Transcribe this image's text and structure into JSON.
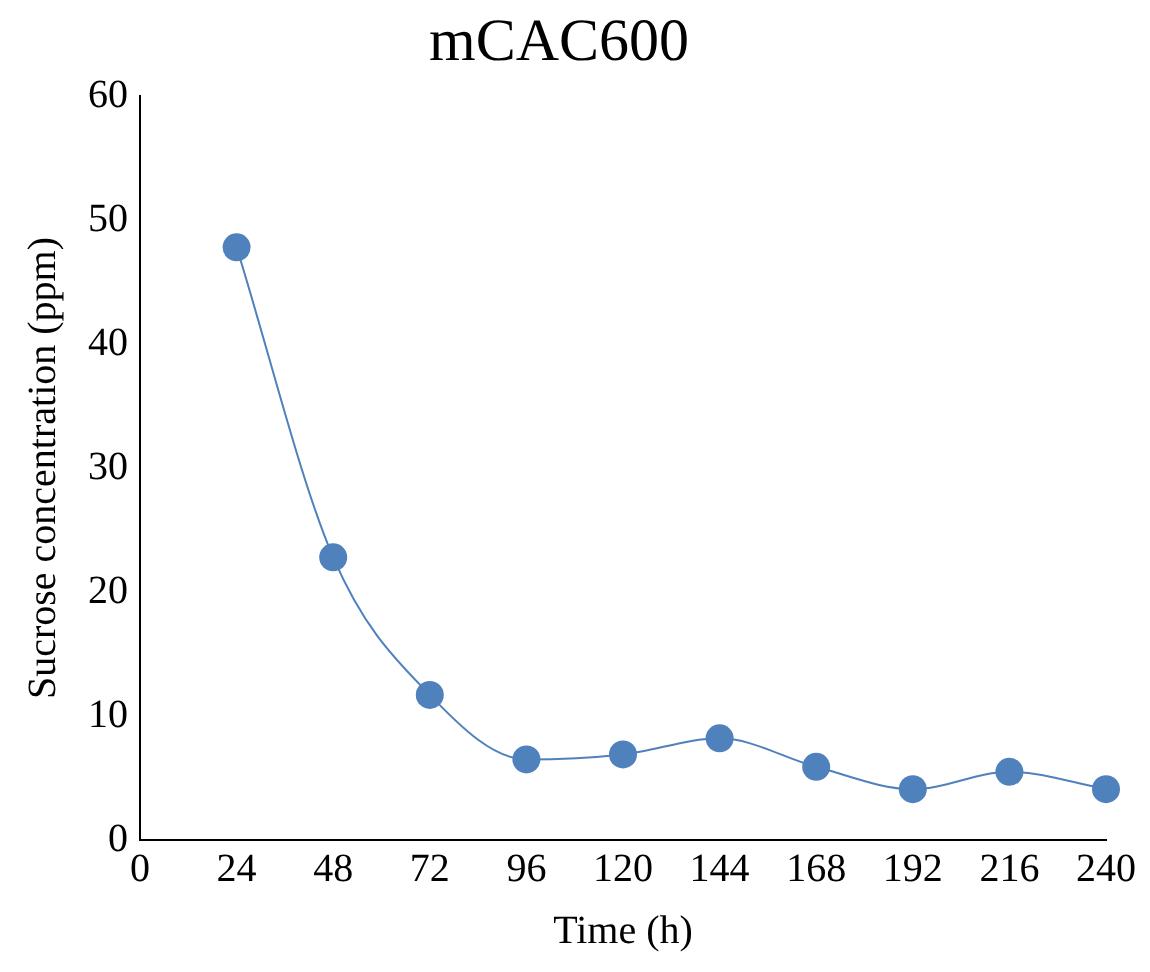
{
  "chart_data": {
    "type": "line",
    "title": "mCAC600",
    "xlabel": "Time (h)",
    "ylabel": "Sucrose concentration (ppm)",
    "x": [
      24,
      48,
      72,
      96,
      120,
      144,
      168,
      192,
      216,
      240
    ],
    "series": [
      {
        "color": "#4f81bd",
        "values": [
          47.8,
          22.8,
          11.7,
          6.5,
          6.9,
          8.2,
          5.9,
          4.1,
          5.5,
          4.1
        ]
      }
    ],
    "xlim": [
      0,
      240
    ],
    "xticks": [
      0,
      24,
      48,
      72,
      96,
      120,
      144,
      168,
      192,
      216,
      240
    ],
    "ylim": [
      0,
      60
    ],
    "yticks": [
      0,
      10,
      20,
      30,
      40,
      50,
      60
    ],
    "grid": false,
    "legend": false,
    "marker": "circle",
    "line_style": "solid"
  }
}
